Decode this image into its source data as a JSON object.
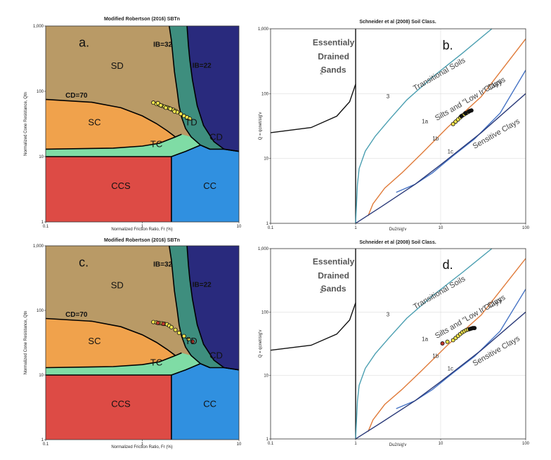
{
  "chart_data": [
    {
      "panel": "a.",
      "type": "scatter",
      "title": "Modified Robertson (2016) SBTn",
      "xlabel": "Normalized Friction Ratio, Fr (%)",
      "ylabel": "Normalized Cone Resistance, Qtn",
      "xscale": "log",
      "yscale": "log",
      "xlim": [
        0.1,
        10
      ],
      "ylim": [
        1,
        1000
      ],
      "xticks": [
        "0.1",
        "1",
        "10"
      ],
      "yticks": [
        "1",
        "10",
        "100",
        "1,000"
      ],
      "zone_labels": [
        "SD",
        "SC",
        "TC",
        "TD",
        "CD",
        "CCS",
        "CC"
      ],
      "curve_labels": [
        "CD=70",
        "IB=32",
        "IB=22"
      ],
      "colors": {
        "SD": "#b99a66",
        "SC": "#f0a24c",
        "TC": "#7fdca5",
        "TD": "#3e8e7e",
        "CD": "#292a7d",
        "CCS": "#dd4b45",
        "CC": "#3090e0"
      },
      "points": [
        [
          1.3,
          67
        ],
        [
          1.4,
          64
        ],
        [
          1.5,
          62
        ],
        [
          1.6,
          60
        ],
        [
          1.7,
          58
        ],
        [
          1.8,
          57
        ],
        [
          1.9,
          55
        ],
        [
          2.0,
          53
        ],
        [
          2.1,
          52
        ],
        [
          2.2,
          50
        ],
        [
          2.3,
          48
        ],
        [
          2.5,
          45
        ],
        [
          2.7,
          42
        ],
        [
          2.9,
          40
        ],
        [
          3.1,
          38
        ],
        [
          1.45,
          66
        ],
        [
          1.55,
          61
        ],
        [
          1.75,
          56
        ],
        [
          1.95,
          54
        ],
        [
          2.15,
          49
        ]
      ]
    },
    {
      "panel": "b.",
      "type": "scatter",
      "title": "Schneider et al (2008) Soil Class.",
      "xlabel": "Du2/sig'v",
      "ylabel": "Q = qcnet/sig'v",
      "xscale": "log",
      "yscale": "log",
      "xlim": [
        0.1,
        100
      ],
      "ylim": [
        1,
        1000
      ],
      "xticks": [
        "0.1",
        "1",
        "10",
        "100"
      ],
      "yticks": [
        "1",
        "10",
        "100",
        "1,000"
      ],
      "region_labels": [
        "Essentialy",
        "Drained",
        "Sands",
        "Transitional Soils",
        "Silts and \"Low Ir\" Clays",
        "Clays",
        "Sensitive Clays"
      ],
      "class_numbers": [
        "2",
        "3",
        "1a",
        "1b",
        "1c"
      ],
      "points": [
        [
          14,
          34
        ],
        [
          15,
          37
        ],
        [
          16,
          40
        ],
        [
          17,
          43
        ],
        [
          18,
          46
        ],
        [
          19,
          48
        ],
        [
          20,
          50
        ],
        [
          21,
          52
        ],
        [
          22,
          54
        ],
        [
          23,
          55
        ],
        [
          17.5,
          45
        ],
        [
          19.5,
          50
        ],
        [
          21.5,
          53
        ]
      ]
    },
    {
      "panel": "c.",
      "type": "scatter",
      "title": "Modified Robertson (2016) SBTn",
      "xlabel": "Normalized Friction Ratio, Fr (%)",
      "ylabel": "Normalized Cone Resistance, Qtn",
      "xscale": "log",
      "yscale": "log",
      "xlim": [
        0.1,
        10
      ],
      "ylim": [
        1,
        1000
      ],
      "xticks": [
        "0.1",
        "1",
        "10"
      ],
      "yticks": [
        "1",
        "10",
        "100",
        "1,000"
      ],
      "zone_labels": [
        "SD",
        "SC",
        "TC",
        "TD",
        "CD",
        "CCS",
        "CC"
      ],
      "curve_labels": [
        "CD=70",
        "IB=32",
        "IB=22"
      ],
      "colors": {
        "SD": "#b99a66",
        "SC": "#f0a24c",
        "TC": "#7fdca5",
        "TD": "#3e8e7e",
        "CD": "#292a7d",
        "CCS": "#dd4b45",
        "CC": "#3090e0"
      },
      "points": [
        [
          1.3,
          66
        ],
        [
          1.4,
          65
        ],
        [
          1.5,
          64
        ],
        [
          1.6,
          63
        ],
        [
          1.7,
          62
        ],
        [
          1.8,
          61
        ],
        [
          1.9,
          58
        ],
        [
          2.0,
          55
        ],
        [
          2.2,
          50
        ],
        [
          2.4,
          45
        ],
        [
          2.7,
          40
        ],
        [
          3.0,
          36
        ],
        [
          3.3,
          33
        ],
        [
          1.45,
          64
        ],
        [
          1.65,
          62
        ]
      ]
    },
    {
      "panel": "d.",
      "type": "scatter",
      "title": "Schneider et al (2008) Soil Class.",
      "xlabel": "Du2/sig'v",
      "ylabel": "Q = qcnet/sig'v",
      "xscale": "log",
      "yscale": "log",
      "xlim": [
        0.1,
        100
      ],
      "ylim": [
        1,
        1000
      ],
      "xticks": [
        "0.1",
        "1",
        "10",
        "100"
      ],
      "yticks": [
        "1",
        "10",
        "100",
        "1,000"
      ],
      "region_labels": [
        "Essentialy",
        "Drained",
        "Sands",
        "Transitional Soils",
        "Silts and \"Low Ir\" Clays",
        "Clays",
        "Sensitive Clays"
      ],
      "class_numbers": [
        "2",
        "3",
        "1a",
        "1b",
        "1c"
      ],
      "points": [
        [
          10.5,
          32
        ],
        [
          12,
          34
        ],
        [
          14,
          36
        ],
        [
          15,
          39
        ],
        [
          16,
          42
        ],
        [
          17,
          45
        ],
        [
          18,
          48
        ],
        [
          19,
          50
        ],
        [
          20,
          52
        ],
        [
          21,
          53
        ],
        [
          22,
          54
        ],
        [
          23,
          55
        ],
        [
          24,
          56
        ],
        [
          25,
          56
        ]
      ]
    }
  ]
}
